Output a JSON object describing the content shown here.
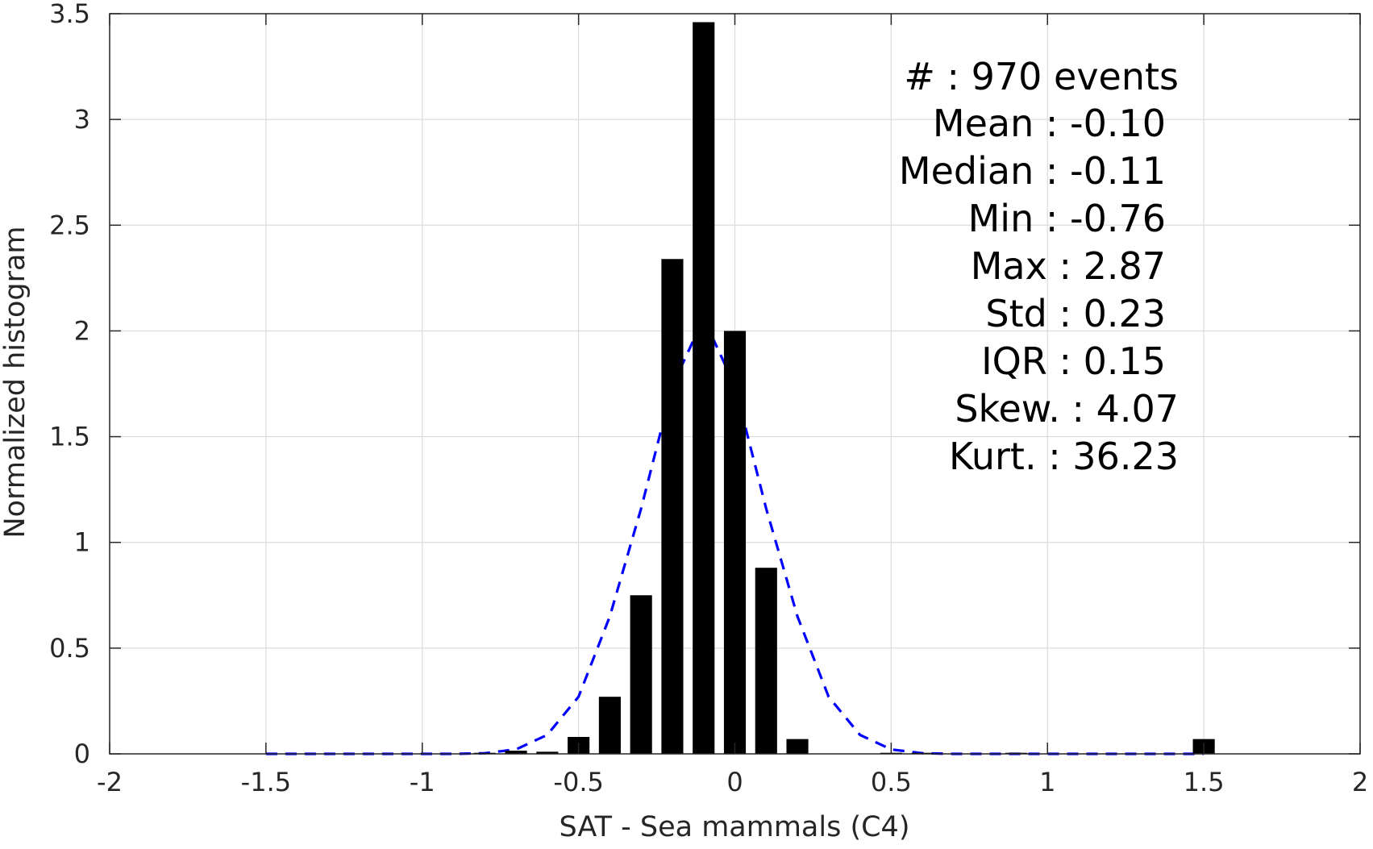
{
  "chart_data": {
    "type": "bar",
    "title": "",
    "xlabel": "SAT - Sea mammals (C4)",
    "ylabel": "Normalized histogram",
    "xlim": [
      -2,
      2
    ],
    "ylim": [
      0,
      3.5
    ],
    "grid": true,
    "xticks": [
      -2,
      -1.5,
      -1,
      -0.5,
      0,
      0.5,
      1,
      1.5,
      2
    ],
    "xtick_labels": [
      "-2",
      "-1.5",
      "-1",
      "-0.5",
      "0",
      "0.5",
      "1",
      "1.5",
      "2"
    ],
    "yticks": [
      0,
      0.5,
      1,
      1.5,
      2,
      2.5,
      3,
      3.5
    ],
    "ytick_labels": [
      "0",
      "0.5",
      "1",
      "1.5",
      "2",
      "2.5",
      "3",
      "3.5"
    ],
    "bar_width": 0.07,
    "bars": {
      "x": [
        -0.8,
        -0.7,
        -0.6,
        -0.5,
        -0.4,
        -0.3,
        -0.2,
        -0.1,
        0.0,
        0.1,
        0.2,
        0.5,
        0.6,
        0.9,
        1.5
      ],
      "values": [
        0.005,
        0.015,
        0.01,
        0.08,
        0.27,
        0.75,
        2.34,
        3.46,
        2.0,
        0.88,
        0.07,
        0.005,
        0.005,
        0.005,
        0.07
      ],
      "color": "#000000"
    },
    "fit_curve": {
      "style": "dashed",
      "color": "#0000ff",
      "x": [
        -1.5,
        -1.4,
        -1.3,
        -1.2,
        -1.1,
        -1.0,
        -0.9,
        -0.8,
        -0.7,
        -0.6,
        -0.5,
        -0.4,
        -0.3,
        -0.2,
        -0.1,
        0.0,
        0.1,
        0.2,
        0.3,
        0.4,
        0.5,
        0.6,
        0.7,
        0.8,
        0.9,
        1.0,
        1.1,
        1.2,
        1.3,
        1.4,
        1.5
      ],
      "y": [
        0.0,
        0.0,
        0.0,
        0.0,
        0.0,
        0.0,
        0.0,
        0.003,
        0.021,
        0.09,
        0.27,
        0.65,
        1.16,
        1.74,
        2.06,
        1.74,
        1.16,
        0.65,
        0.27,
        0.09,
        0.021,
        0.003,
        0.0,
        0.0,
        0.0,
        0.0,
        0.0,
        0.0,
        0.0,
        0.0,
        0.0
      ]
    },
    "annotations": [
      "#  : 970 events",
      "Mean : -0.10",
      "Median : -0.11",
      "Min : -0.76",
      "Max : 2.87",
      "Std : 0.23",
      "IQR : 0.15",
      "Skew. : 4.07",
      "Kurt. : 36.23"
    ]
  }
}
